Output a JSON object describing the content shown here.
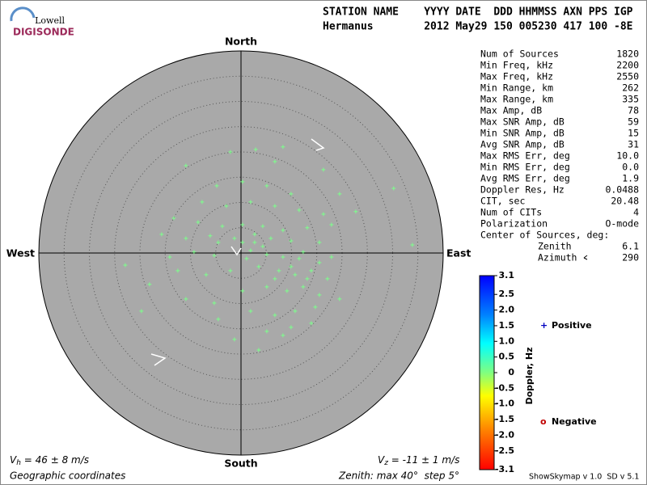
{
  "chart_data": {
    "type": "skymap",
    "logo": {
      "top": "Lowell",
      "bottom": "DIGISONDE"
    },
    "header": [
      "STATION NAME    YYYY DATE  DDD HHMMSS AXN PPS IGP",
      "Hermanus        2012 May29 150 005230 417 100 -8E"
    ],
    "directions": {
      "north": "North",
      "south": "South",
      "west": "West",
      "east": "East"
    },
    "rlim": [
      0,
      40
    ],
    "rticks": [
      5,
      10,
      15,
      20,
      25,
      30,
      35,
      40
    ],
    "stats": [
      [
        "Num of Sources",
        "1820"
      ],
      [
        "Min Freq, kHz",
        "2200"
      ],
      [
        "Max Freq, kHz",
        "2550"
      ],
      [
        "Min Range, km",
        "262"
      ],
      [
        "Max Range, km",
        "335"
      ],
      [
        "Max Amp, dB",
        "78"
      ],
      [
        "Max SNR Amp, dB",
        "59"
      ],
      [
        "Min SNR Amp, dB",
        "15"
      ],
      [
        "Avg SNR Amp, dB",
        "31"
      ],
      [
        "Max RMS Err, deg",
        "10.0"
      ],
      [
        "Min RMS Err, deg",
        "0.0"
      ],
      [
        "Avg RMS Err, deg",
        "1.9"
      ],
      [
        "Doppler Res, Hz",
        "0.0488"
      ],
      [
        "CIT, sec",
        "20.48"
      ],
      [
        "Num of CITs",
        "4"
      ],
      [
        "Polarization",
        "O-mode"
      ]
    ],
    "center_title": "Center of Sources, deg:",
    "center": [
      [
        "Zenith",
        "6.1"
      ],
      [
        "Azimuth",
        "290"
      ]
    ],
    "colorbar": {
      "label": "Doppler, Hz",
      "clim": [
        -3.1,
        3.1
      ],
      "ticks": [
        3.1,
        2.5,
        {
          "value": 2,
          "label": "2.0"
        },
        1.5,
        {
          "value": 1,
          "label": "1.0"
        },
        0.5,
        0,
        -0.5,
        {
          "value": -1,
          "label": "-1.0"
        },
        -1.5,
        {
          "value": -2,
          "label": "-2.0"
        },
        -2.5,
        -3.1
      ]
    },
    "series": [
      {
        "name": "Positive",
        "color": "#7dff8c",
        "legend_color": "#0000c0",
        "x": [
          -2.1,
          2.9,
          8.3,
          -10.9,
          6.7,
          16.3,
          30.2,
          -4.8,
          0.3,
          5.1,
          9.9,
          19.5,
          -7.7,
          -2.9,
          1.9,
          6.7,
          11.5,
          16.3,
          22.7,
          -13.3,
          -8.5,
          -3.7,
          0.3,
          4.3,
          8.3,
          13.1,
          17.9,
          -15.7,
          -10.9,
          -6.1,
          -1.3,
          2.7,
          5.9,
          9.9,
          15.5,
          33.9,
          -22.9,
          -14.1,
          -9.3,
          -5.3,
          1.9,
          5.1,
          8.3,
          12.3,
          17.9,
          -18.1,
          -12.5,
          -6.9,
          -2.1,
          3.5,
          7.5,
          10.7,
          13.9,
          17.1,
          -19.7,
          -10.9,
          -5.3,
          0.3,
          5.1,
          9.1,
          12.3,
          15.5,
          19.5,
          -4.5,
          1.9,
          6.7,
          10.7,
          14.7,
          5.1,
          9.9,
          13.9,
          3.5,
          8.3,
          -1.3,
          11.5,
          13.1,
          9.9,
          6.7,
          2.7,
          4.3,
          1.1,
          15.5,
          -4.5,
          0.3
        ],
        "y": [
          20.0,
          20.5,
          21.0,
          17.3,
          18.1,
          16.5,
          12.8,
          13.3,
          14.1,
          13.3,
          11.7,
          11.7,
          10.1,
          9.3,
          10.1,
          9.3,
          8.5,
          7.7,
          8.2,
          6.9,
          6.1,
          5.3,
          5.6,
          5.3,
          4.5,
          5.0,
          5.6,
          3.7,
          2.9,
          3.4,
          2.9,
          3.7,
          2.9,
          2.4,
          2.1,
          1.6,
          -2.4,
          -0.8,
          0.2,
          -0.5,
          0.5,
          -0.3,
          -0.8,
          0.2,
          -0.8,
          -6.2,
          -3.5,
          -4.3,
          -3.5,
          -2.7,
          -3.5,
          -4.3,
          -3.5,
          -5.1,
          -11.5,
          -9.1,
          -9.9,
          -7.5,
          -6.7,
          -7.5,
          -6.7,
          -8.3,
          -9.1,
          -13.1,
          -11.5,
          -12.3,
          -11.5,
          -10.7,
          -15.5,
          -14.7,
          -13.9,
          -19.2,
          -16.3,
          -17.1,
          -1.1,
          -5.1,
          -2.7,
          -5.1,
          2.1,
          1.3,
          -1.1,
          -1.9,
          2.1,
          2.1
        ]
      },
      {
        "name": "Negative",
        "color": "#ff6060",
        "legend_color": "#c00000",
        "x": [],
        "y": []
      }
    ],
    "vh": {
      "symbol": "V",
      "sub": "h",
      "text": " = 46 ± 8 m/s"
    },
    "vz": {
      "symbol": "V",
      "sub": "z",
      "text": " = -11 ± 1 m/s"
    },
    "coords": "Geographic coordinates",
    "zenith_note": "Zenith: max 40°  step 5°",
    "version": "ShowSkymap v 1.0  SD v 5.1"
  }
}
